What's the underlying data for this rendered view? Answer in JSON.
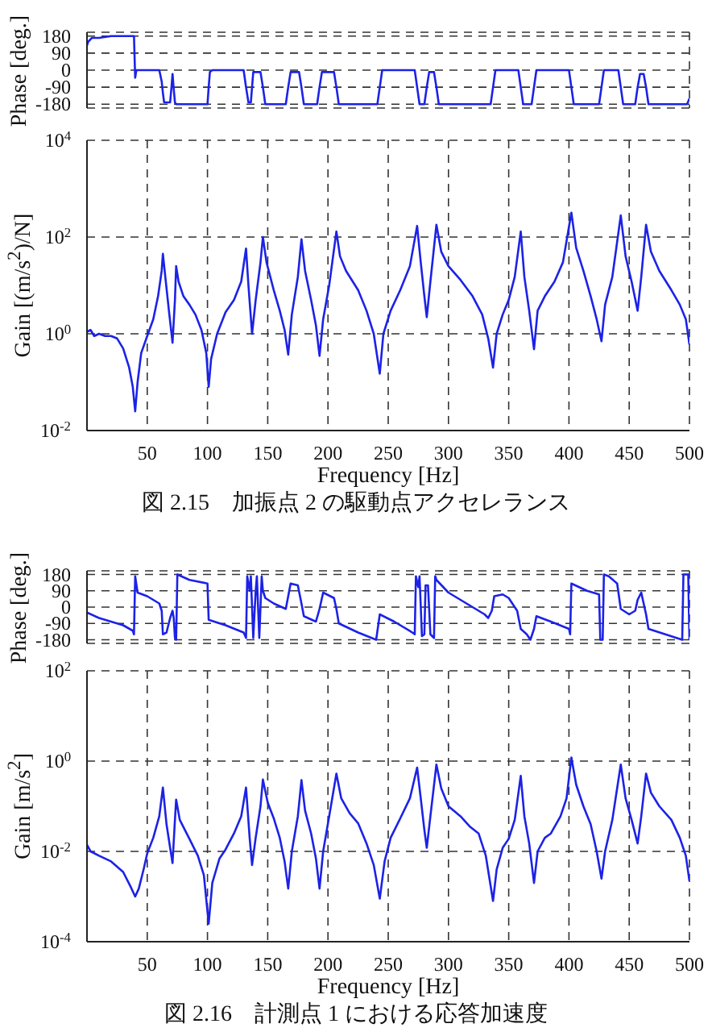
{
  "chart_data": [
    {
      "type": "line",
      "ylabel": "Phase [deg.]",
      "x": [
        0,
        1,
        4,
        10,
        20,
        30,
        39,
        40,
        41,
        60,
        62,
        63,
        64,
        69,
        70,
        71,
        72,
        73,
        74,
        100,
        101,
        102,
        104,
        130,
        132,
        134,
        136,
        137,
        138,
        144,
        146,
        148,
        165,
        167,
        169,
        176,
        178,
        180,
        191,
        193,
        195,
        205,
        207,
        209,
        241,
        243,
        245,
        272,
        274,
        276,
        280,
        282,
        284,
        288,
        290,
        292,
        335,
        337,
        339,
        358,
        360,
        362,
        369,
        371,
        373,
        400,
        402,
        404,
        425,
        427,
        429,
        441,
        443,
        445,
        455,
        457,
        459,
        462,
        464,
        466,
        498,
        500
      ],
      "series": [
        {
          "color": "#1c22e6",
          "values": [
            130,
            150,
            170,
            170,
            180,
            180,
            180,
            -40,
            0,
            0,
            -60,
            -120,
            -170,
            -170,
            -100,
            -20,
            -100,
            -170,
            -180,
            -180,
            -90,
            -10,
            0,
            0,
            -90,
            -170,
            -170,
            -90,
            -10,
            -10,
            -90,
            -180,
            -180,
            -90,
            -10,
            -10,
            -90,
            -180,
            -180,
            -90,
            -10,
            -10,
            -90,
            -180,
            -180,
            -90,
            0,
            0,
            -90,
            -180,
            -180,
            -90,
            -10,
            -10,
            -90,
            -180,
            -180,
            -90,
            0,
            0,
            -90,
            -180,
            -180,
            -90,
            0,
            0,
            -90,
            -180,
            -180,
            -90,
            0,
            0,
            -90,
            -180,
            -180,
            -90,
            -20,
            -20,
            -90,
            -180,
            -180,
            -150
          ]
        }
      ],
      "xlim": [
        0,
        500
      ],
      "xticks": [
        50,
        100,
        150,
        200,
        250,
        300,
        350,
        400,
        450,
        500
      ],
      "ylim": [
        -200,
        200
      ],
      "yticks": [
        -180,
        -90,
        0,
        90,
        180
      ],
      "grid": true,
      "tick_labels": "y"
    },
    {
      "type": "line",
      "ylabel": "Gain [(m/s$^{2}$)/N]",
      "xlabel": "Frequency [Hz]",
      "annotations": [
        "図 2.15　加振点 2 の駆動点アクセレランス"
      ],
      "x": [
        0,
        3,
        6,
        10,
        15,
        20,
        25,
        30,
        35,
        38,
        40,
        42,
        45,
        50,
        55,
        59,
        62,
        63,
        65,
        68,
        71,
        73,
        74,
        76,
        80,
        85,
        90,
        95,
        99,
        101,
        103,
        108,
        115,
        122,
        128,
        132,
        134,
        137,
        140,
        144,
        146,
        149,
        155,
        160,
        164,
        167,
        170,
        175,
        178,
        181,
        186,
        190,
        193,
        196,
        201,
        207,
        210,
        215,
        225,
        232,
        238,
        243,
        246,
        252,
        260,
        268,
        274,
        277,
        280,
        282,
        285,
        290,
        294,
        300,
        310,
        320,
        328,
        333,
        337,
        340,
        345,
        350,
        355,
        360,
        363,
        367,
        371,
        374,
        380,
        388,
        395,
        402,
        406,
        412,
        418,
        423,
        427,
        430,
        436,
        443,
        447,
        452,
        457,
        460,
        464,
        468,
        475,
        485,
        492,
        497,
        500
      ],
      "series": [
        {
          "color": "#1c22e6",
          "values": [
            1.1,
            1.2,
            0.9,
            1,
            0.9,
            0.9,
            0.8,
            0.5,
            0.2,
            0.08,
            0.025,
            0.1,
            0.4,
            0.9,
            2,
            6,
            20,
            45,
            15,
            3,
            0.65,
            5,
            25,
            12,
            6,
            4,
            2.5,
            1.2,
            0.4,
            0.08,
            0.3,
            1,
            2.8,
            5,
            12,
            58,
            10,
            1,
            5,
            30,
            100,
            30,
            8,
            3,
            1.2,
            0.37,
            2.5,
            15,
            90,
            20,
            5,
            1.5,
            0.35,
            2,
            10,
            130,
            40,
            20,
            8,
            3,
            1,
            0.15,
            1,
            3,
            8,
            25,
            170,
            30,
            6,
            2.2,
            12,
            180,
            50,
            25,
            13,
            6,
            2.5,
            0.8,
            0.2,
            1,
            2.5,
            5,
            15,
            130,
            15,
            3,
            0.48,
            3,
            6,
            12,
            30,
            320,
            60,
            20,
            6,
            2,
            0.7,
            4,
            15,
            280,
            40,
            12,
            3,
            15,
            180,
            50,
            20,
            8,
            4,
            2,
            0.6
          ]
        }
      ],
      "xlim": [
        0,
        500
      ],
      "xticks": [
        50,
        100,
        150,
        200,
        250,
        300,
        350,
        400,
        450,
        500
      ],
      "log": true,
      "ylim": [
        0.01,
        10000
      ],
      "yticks": [
        {
          "value": 0.01,
          "label": "10$^{-2}$"
        },
        {
          "value": 1,
          "label": "10$^{0}$"
        },
        {
          "value": 100,
          "label": "10$^{2}$"
        },
        {
          "value": 10000,
          "label": "10$^{4}$"
        }
      ],
      "grid": true
    },
    {
      "type": "line",
      "ylabel": "Phase [deg.]",
      "x": [
        0,
        10,
        20,
        30,
        38,
        39,
        40,
        42,
        50,
        60,
        62,
        63,
        66,
        69,
        71,
        72,
        73,
        74,
        75,
        85,
        100,
        101,
        115,
        130,
        132,
        133,
        135,
        136,
        138,
        140,
        141,
        143,
        145,
        146,
        148,
        155,
        165,
        167,
        169,
        175,
        178,
        180,
        190,
        193,
        196,
        205,
        207,
        209,
        225,
        240,
        243,
        255,
        270,
        272,
        273,
        275,
        276,
        278,
        280,
        281,
        283,
        285,
        288,
        289,
        290,
        300,
        315,
        330,
        333,
        336,
        338,
        345,
        350,
        357,
        360,
        365,
        368,
        371,
        373,
        385,
        400,
        401,
        402,
        415,
        425,
        426,
        428,
        429,
        433,
        440,
        443,
        450,
        455,
        457,
        460,
        464,
        466,
        480,
        494,
        495,
        499,
        500
      ],
      "series": [
        {
          "color": "#1c22e6",
          "values": [
            -30,
            -60,
            -80,
            -100,
            -130,
            -150,
            170,
            80,
            60,
            20,
            -20,
            -150,
            -140,
            -60,
            -20,
            -60,
            -170,
            -180,
            180,
            150,
            130,
            -70,
            -100,
            -140,
            -170,
            170,
            90,
            170,
            -170,
            90,
            170,
            -170,
            170,
            90,
            50,
            20,
            -10,
            60,
            130,
            120,
            20,
            -50,
            -80,
            -10,
            80,
            50,
            -10,
            -90,
            -140,
            -180,
            -40,
            -80,
            -140,
            -150,
            170,
            110,
            170,
            -160,
            -150,
            120,
            120,
            -150,
            -170,
            170,
            150,
            80,
            20,
            -40,
            -60,
            -20,
            60,
            70,
            50,
            -20,
            -120,
            -150,
            -180,
            -120,
            -50,
            -80,
            -120,
            -150,
            130,
            90,
            70,
            -180,
            -180,
            180,
            170,
            130,
            -10,
            -40,
            -20,
            40,
            80,
            -40,
            -120,
            -150,
            -180,
            180,
            180,
            -180
          ]
        }
      ],
      "xlim": [
        0,
        500
      ],
      "xticks": [
        50,
        100,
        150,
        200,
        250,
        300,
        350,
        400,
        450,
        500
      ],
      "ylim": [
        -200,
        200
      ],
      "yticks": [
        -180,
        -90,
        0,
        90,
        180
      ],
      "grid": true,
      "tick_labels": "y"
    },
    {
      "type": "line",
      "ylabel": "Gain [m/s$^{2}$]",
      "xlabel": "Frequency [Hz]",
      "annotations": [
        "図 2.16　計測点 1 における応答加速度"
      ],
      "x": [
        0,
        3,
        10,
        20,
        30,
        36,
        40,
        43,
        47,
        50,
        55,
        60,
        63,
        66,
        69,
        71,
        73,
        74,
        77,
        85,
        92,
        97,
        101,
        104,
        110,
        115,
        122,
        128,
        132,
        135,
        137,
        140,
        144,
        146,
        150,
        155,
        160,
        164,
        167,
        170,
        175,
        178,
        181,
        186,
        190,
        193,
        196,
        201,
        207,
        211,
        218,
        225,
        232,
        238,
        243,
        247,
        252,
        260,
        268,
        274,
        277,
        280,
        282,
        285,
        290,
        294,
        300,
        310,
        318,
        325,
        331,
        337,
        340,
        345,
        350,
        355,
        360,
        363,
        367,
        371,
        374,
        380,
        385,
        393,
        398,
        402,
        406,
        412,
        418,
        423,
        427,
        430,
        436,
        443,
        447,
        452,
        457,
        460,
        464,
        468,
        475,
        485,
        492,
        497,
        500
      ],
      "series": [
        {
          "color": "#1c22e6",
          "values": [
            0.014,
            0.01,
            0.008,
            0.006,
            0.0035,
            0.0017,
            0.001,
            0.0015,
            0.004,
            0.009,
            0.02,
            0.06,
            0.26,
            0.04,
            0.012,
            0.0055,
            0.05,
            0.14,
            0.05,
            0.019,
            0.008,
            0.003,
            0.00025,
            0.002,
            0.007,
            0.011,
            0.025,
            0.06,
            0.26,
            0.02,
            0.005,
            0.02,
            0.1,
            0.39,
            0.12,
            0.054,
            0.02,
            0.006,
            0.0015,
            0.01,
            0.06,
            0.38,
            0.08,
            0.025,
            0.007,
            0.0015,
            0.01,
            0.06,
            0.53,
            0.15,
            0.07,
            0.042,
            0.015,
            0.005,
            0.0009,
            0.006,
            0.02,
            0.054,
            0.15,
            0.72,
            0.15,
            0.03,
            0.012,
            0.06,
            0.84,
            0.25,
            0.1,
            0.06,
            0.035,
            0.025,
            0.008,
            0.0008,
            0.004,
            0.012,
            0.019,
            0.05,
            0.47,
            0.06,
            0.015,
            0.002,
            0.01,
            0.02,
            0.025,
            0.06,
            0.15,
            1.2,
            0.3,
            0.1,
            0.04,
            0.01,
            0.0025,
            0.01,
            0.05,
            0.84,
            0.15,
            0.05,
            0.015,
            0.06,
            0.53,
            0.2,
            0.1,
            0.05,
            0.02,
            0.008,
            0.0022
          ]
        }
      ],
      "xlim": [
        0,
        500
      ],
      "xticks": [
        50,
        100,
        150,
        200,
        250,
        300,
        350,
        400,
        450,
        500
      ],
      "log": true,
      "ylim": [
        0.0001,
        100
      ],
      "yticks": [
        {
          "value": 0.0001,
          "label": "10$^{-4}$"
        },
        {
          "value": 0.01,
          "label": "10$^{-2}$"
        },
        {
          "value": 1,
          "label": "10$^{0}$"
        },
        {
          "value": 100,
          "label": "10$^{2}$"
        }
      ],
      "grid": true
    }
  ]
}
